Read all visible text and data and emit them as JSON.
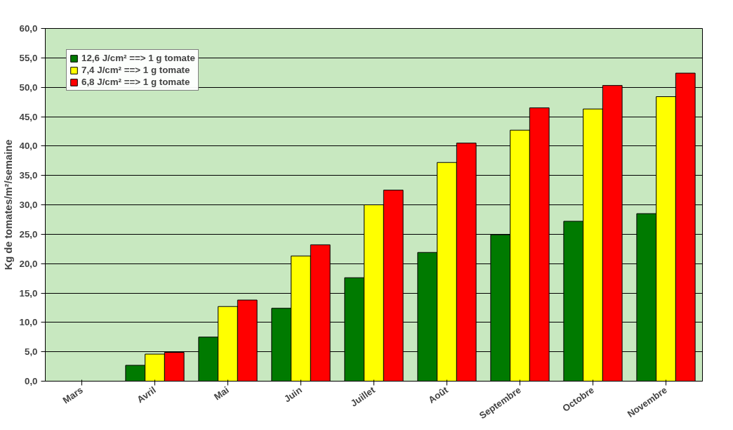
{
  "chart_data": {
    "type": "bar",
    "ylabel": "Kg de tomates/m²/semaine",
    "categories": [
      "Mars",
      "Avril",
      "Mai",
      "Juin",
      "Juillet",
      "Août",
      "Septembre",
      "Octobre",
      "Novembre"
    ],
    "series": [
      {
        "name": "12,6 J/cm² ==> 1 g tomate",
        "color": "#007a00",
        "values": [
          null,
          2.7,
          7.5,
          12.4,
          17.6,
          21.9,
          24.9,
          27.2,
          28.5
        ]
      },
      {
        "name": "7,4 J/cm² ==> 1 g tomate",
        "color": "#ffff00",
        "values": [
          null,
          4.6,
          12.7,
          21.3,
          30.0,
          37.2,
          42.7,
          46.3,
          48.4
        ]
      },
      {
        "name": "6,8 J/cm² ==> 1 g tomate",
        "color": "#ff0000",
        "values": [
          null,
          4.9,
          13.8,
          23.2,
          32.5,
          40.5,
          46.5,
          50.3,
          52.4
        ]
      }
    ],
    "ylim": [
      0,
      60
    ],
    "yticks": [
      {
        "value": 0,
        "label": "0,0"
      },
      {
        "value": 5,
        "label": "5,0"
      },
      {
        "value": 10,
        "label": "10,0"
      },
      {
        "value": 15,
        "label": "15,0"
      },
      {
        "value": 20,
        "label": "20,0"
      },
      {
        "value": 25,
        "label": "25,0"
      },
      {
        "value": 30,
        "label": "30,0"
      },
      {
        "value": 35,
        "label": "35,0"
      },
      {
        "value": 40,
        "label": "40,0"
      },
      {
        "value": 45,
        "label": "45,0"
      },
      {
        "value": 50,
        "label": "50,0"
      },
      {
        "value": 55,
        "label": "55,0"
      },
      {
        "value": 60,
        "label": "60,0"
      }
    ],
    "grid": "y",
    "legend": "top left"
  }
}
